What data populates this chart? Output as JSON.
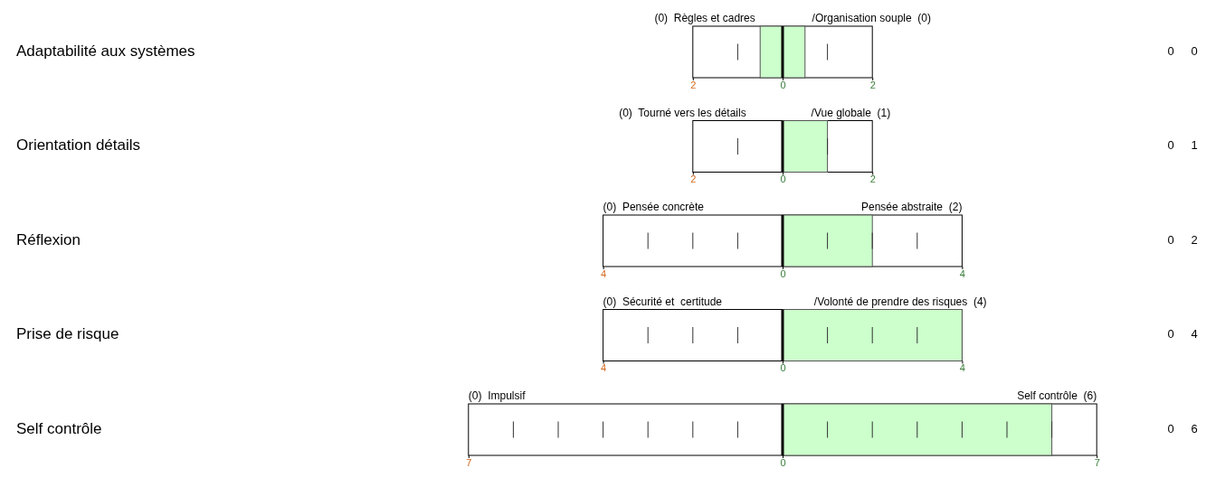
{
  "chart_data": [
    {
      "type": "bar",
      "orientation": "horizontal",
      "ylabel": "Adaptabilité aux systèmes",
      "categories": [
        null
      ],
      "values": [
        1
      ],
      "base": [
        -0.5
      ],
      "color": "#ccffcc",
      "xlim": [
        -2,
        2
      ],
      "xticks": [
        {
          "value": -2,
          "label": "2"
        },
        0,
        2
      ],
      "ref_lines": [
        {
          "axis": "x",
          "value": 0,
          "color": "#000000"
        }
      ],
      "annotations": [
        "(0)  Règles et cadres",
        "/Organisation souple  (0)",
        "0",
        "0"
      ]
    },
    {
      "type": "bar",
      "orientation": "horizontal",
      "ylabel": "Orientation détails",
      "categories": [
        null
      ],
      "values": [
        1
      ],
      "base": [
        0
      ],
      "color": "#ccffcc",
      "xlim": [
        -2,
        2
      ],
      "xticks": [
        {
          "value": -2,
          "label": "2"
        },
        0,
        2
      ],
      "ref_lines": [
        {
          "axis": "x",
          "value": 0,
          "color": "#000000"
        }
      ],
      "annotations": [
        "(0)  Tourné vers les détails",
        "/Vue globale  (1)",
        "0",
        "1"
      ]
    },
    {
      "type": "bar",
      "orientation": "horizontal",
      "ylabel": "Réflexion",
      "categories": [
        null
      ],
      "values": [
        2
      ],
      "base": [
        0
      ],
      "color": "#ccffcc",
      "xlim": [
        -4,
        4
      ],
      "xticks": [
        {
          "value": -4,
          "label": "4"
        },
        0,
        4
      ],
      "ref_lines": [
        {
          "axis": "x",
          "value": 0,
          "color": "#000000"
        }
      ],
      "annotations": [
        "(0)  Pensée concrète",
        "Pensée abstraite  (2)",
        "0",
        "2"
      ]
    },
    {
      "type": "bar",
      "orientation": "horizontal",
      "ylabel": "Prise de risque",
      "categories": [
        null
      ],
      "values": [
        4
      ],
      "base": [
        0
      ],
      "color": "#ccffcc",
      "xlim": [
        -4,
        4
      ],
      "xticks": [
        {
          "value": -4,
          "label": "4"
        },
        0,
        4
      ],
      "ref_lines": [
        {
          "axis": "x",
          "value": 0,
          "color": "#000000"
        }
      ],
      "annotations": [
        "(0)  Sécurité et  certitude",
        "/Volonté de prendre des risques  (4)",
        "0",
        "4"
      ]
    },
    {
      "type": "bar",
      "orientation": "horizontal",
      "ylabel": "Self contrôle",
      "categories": [
        null
      ],
      "values": [
        6
      ],
      "base": [
        0
      ],
      "color": "#ccffcc",
      "xlim": [
        -7,
        7
      ],
      "xticks": [
        {
          "value": -7,
          "label": "7"
        },
        0,
        7
      ],
      "ref_lines": [
        {
          "axis": "x",
          "value": 0,
          "color": "#000000"
        }
      ],
      "annotations": [
        "(0)  Impulsif",
        "Self contrôle  (6)",
        "0",
        "6"
      ]
    }
  ]
}
